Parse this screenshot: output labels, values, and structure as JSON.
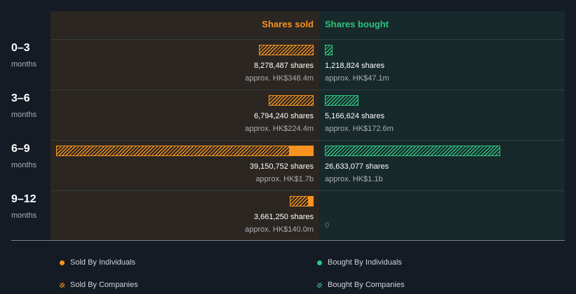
{
  "chart_data": {
    "type": "bar",
    "orientation": "horizontal-diverging",
    "column_headers": {
      "sold": "Shares sold",
      "bought": "Shares bought"
    },
    "colors": {
      "sold": "#f7931e",
      "bought": "#2fc47f",
      "background_sold": "#2b2621",
      "background_bought": "#17292b"
    },
    "rows": [
      {
        "period": "0–3",
        "unit": "months",
        "sold": {
          "companies": 8278487,
          "individuals": 0,
          "shares_text": "8,278,487 shares",
          "value_text": "approx. HK$348.4m"
        },
        "bought": {
          "companies": 1218824,
          "individuals": 0,
          "shares_text": "1,218,824 shares",
          "value_text": "approx. HK$47.1m"
        }
      },
      {
        "period": "3–6",
        "unit": "months",
        "sold": {
          "companies": 6794240,
          "individuals": 0,
          "shares_text": "6,794,240 shares",
          "value_text": "approx. HK$224.4m"
        },
        "bought": {
          "companies": 5166624,
          "individuals": 0,
          "shares_text": "5,166,624 shares",
          "value_text": "approx. HK$172.6m"
        }
      },
      {
        "period": "6–9",
        "unit": "months",
        "sold": {
          "companies": 35500000,
          "individuals": 3650752,
          "shares_text": "39,150,752 shares",
          "value_text": "approx. HK$1.7b"
        },
        "bought": {
          "companies": 26633077,
          "individuals": 0,
          "shares_text": "26,633,077 shares",
          "value_text": "approx. HK$1.1b"
        }
      },
      {
        "period": "9–12",
        "unit": "months",
        "sold": {
          "companies": 2920000,
          "individuals": 741250,
          "shares_text": "3,661,250 shares",
          "value_text": "approx. HK$140.0m"
        },
        "bought": {
          "companies": 0,
          "individuals": 0,
          "shares_text": "",
          "value_text": "",
          "zero_text": "0"
        }
      }
    ],
    "scale_max_shares": 39150752,
    "legend": {
      "sold_individuals": "Sold By Individuals",
      "sold_companies": "Sold By Companies",
      "bought_individuals": "Bought By Individuals",
      "bought_companies": "Bought By Companies"
    }
  }
}
